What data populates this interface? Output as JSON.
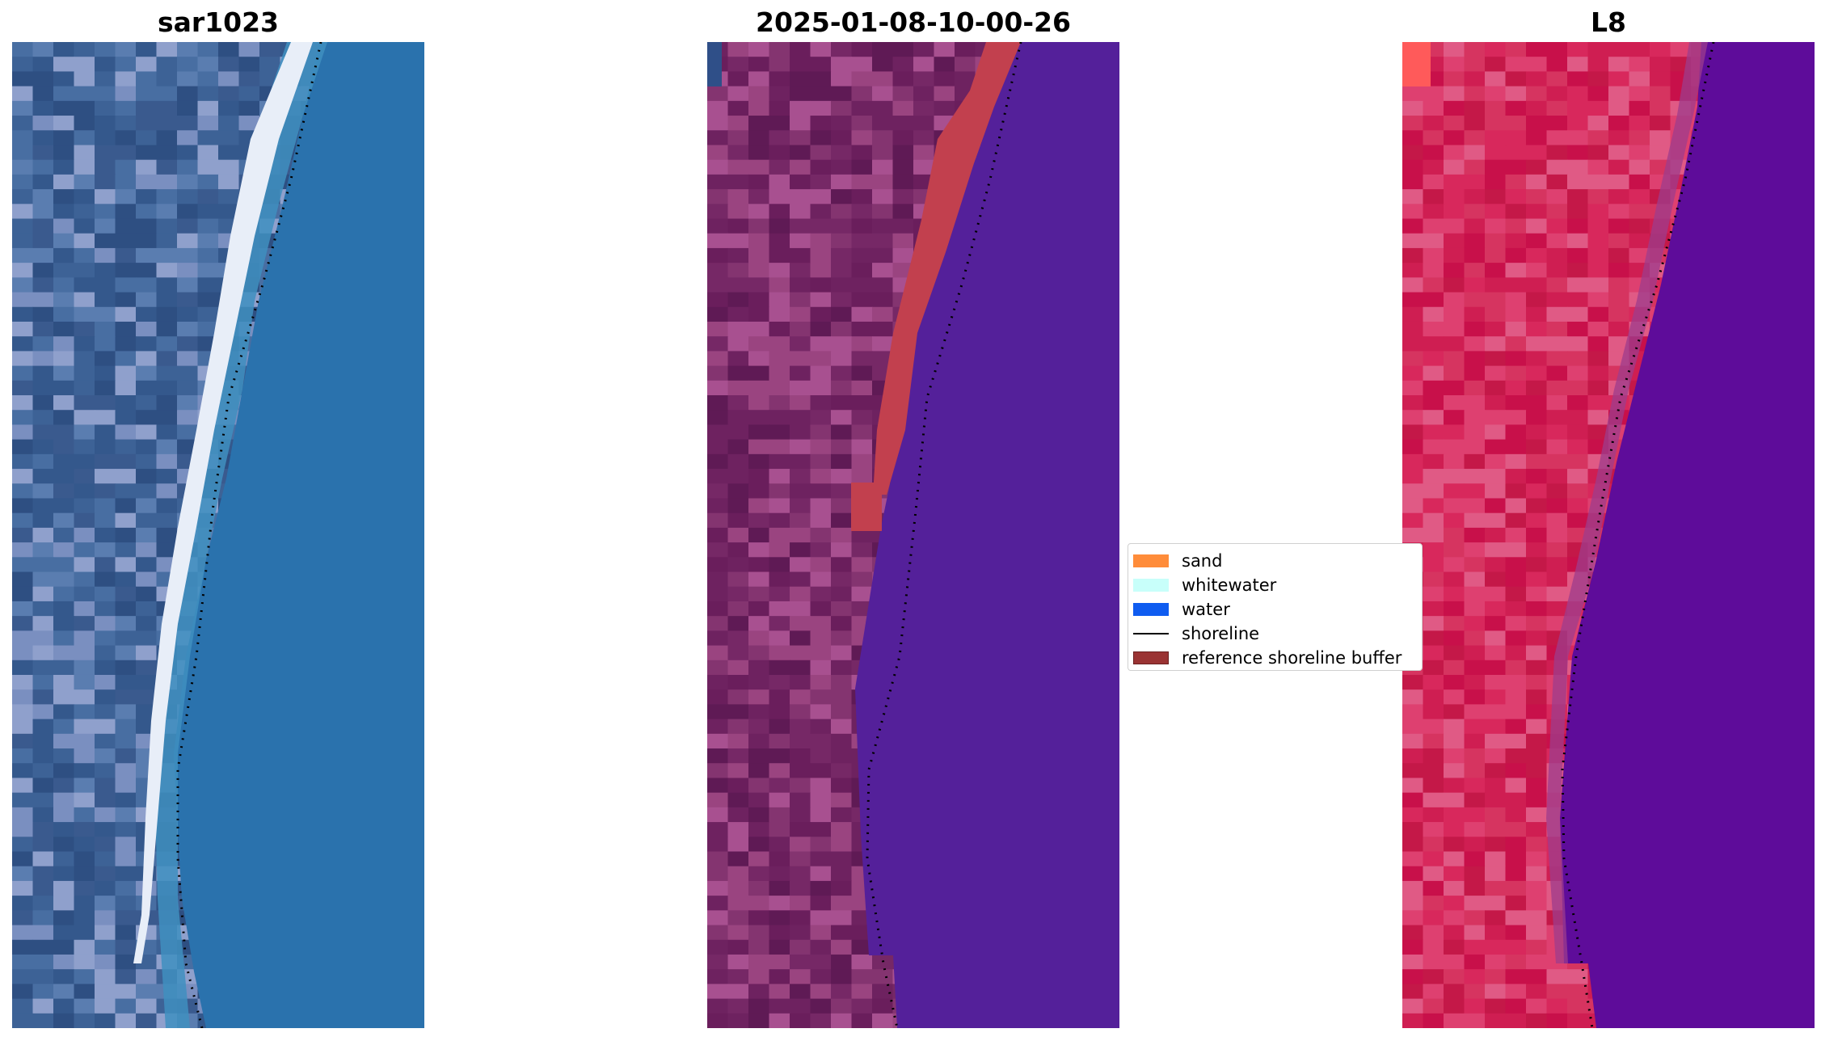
{
  "panels": [
    {
      "title": "sar1023"
    },
    {
      "title": "2025-01-08-10-00-26"
    },
    {
      "title": "L8"
    }
  ],
  "legend": {
    "items": [
      {
        "label": "sand",
        "color": "#ff8c3a",
        "kind": "patch"
      },
      {
        "label": "whitewater",
        "color": "#c8fffa",
        "kind": "patch"
      },
      {
        "label": "water",
        "color": "#0f5cf0",
        "kind": "patch"
      },
      {
        "label": "shoreline",
        "color": "#000000",
        "kind": "line"
      },
      {
        "label": "reference shoreline buffer",
        "color": "#9a3333",
        "kind": "patch"
      }
    ]
  },
  "colors": {
    "rgb_land": "#3a5a8e",
    "rgb_beach": "#e8eef8",
    "rgb_water": "#2a72ad",
    "class_land": "#6a1e5c",
    "class_buffer": "#c2404e",
    "class_water": "#54209a",
    "ndwi_land": "#cf1e52",
    "ndwi_water": "#5e0c9a"
  }
}
